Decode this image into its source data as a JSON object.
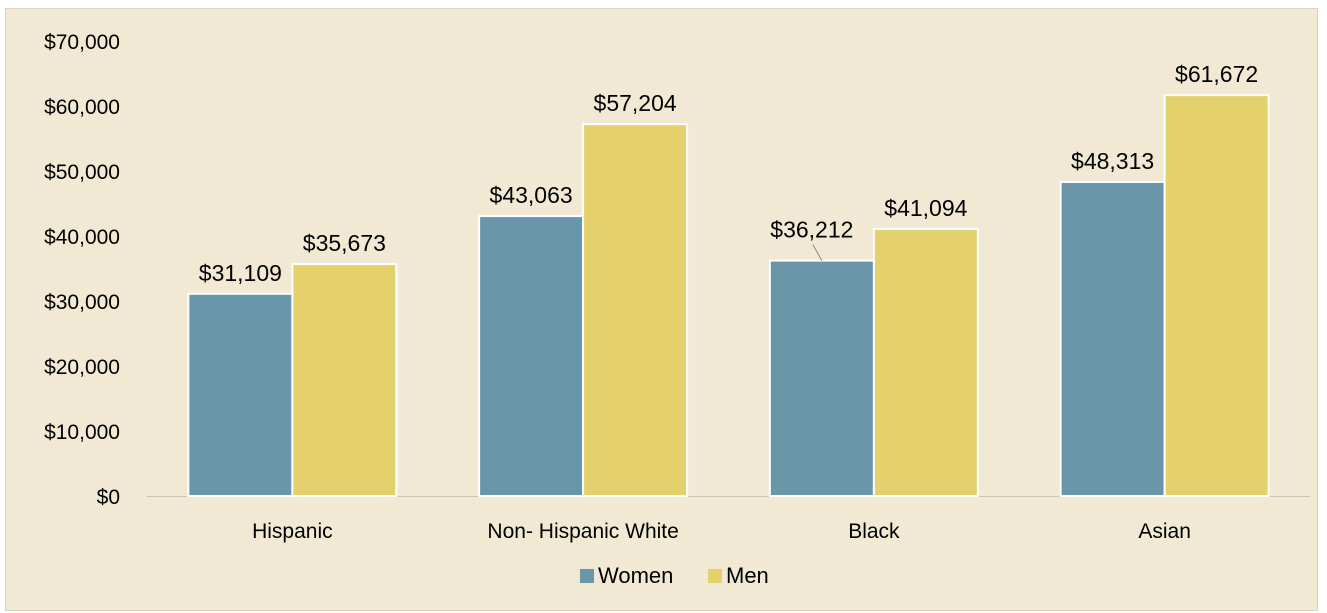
{
  "chart_data": {
    "type": "bar",
    "title": "",
    "xlabel": "",
    "ylabel": "",
    "categories": [
      "Hispanic",
      "Non- Hispanic White",
      "Black",
      "Asian"
    ],
    "series": [
      {
        "name": "Women",
        "values": [
          31109,
          43063,
          36212,
          48313
        ],
        "labels": [
          "$31,109",
          "$43,063",
          "$36,212",
          "$48,313"
        ]
      },
      {
        "name": "Men",
        "values": [
          35673,
          57204,
          41094,
          61672
        ],
        "labels": [
          "$35,673",
          "$57,204",
          "$41,094",
          "$61,672"
        ]
      }
    ],
    "ylim": [
      0,
      70000
    ],
    "yticks": [
      0,
      10000,
      20000,
      30000,
      40000,
      50000,
      60000,
      70000
    ],
    "ytick_labels": [
      "$0",
      "$10,000",
      "$20,000",
      "$30,000",
      "$40,000",
      "$50,000",
      "$60,000",
      "$70,000"
    ],
    "grid": false,
    "legend_position": "bottom",
    "colors": {
      "Women": "#6996a9",
      "Men": "#e5d16b",
      "background": "#f1e9d3"
    }
  }
}
